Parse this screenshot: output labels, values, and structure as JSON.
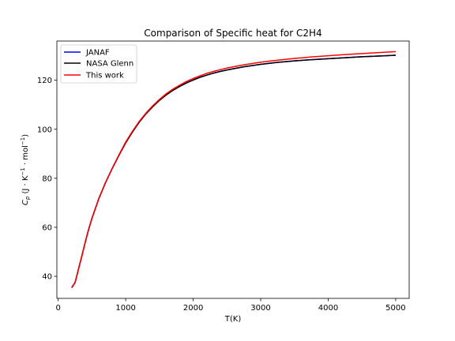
{
  "chart_data": {
    "type": "line",
    "title": "Comparison of Specific heat for C2H4",
    "xlabel": "T(K)",
    "ylabel": {
      "prefix": "C",
      "sub": "p",
      "body": " (J · K",
      "sup1": "−1",
      "mid": " · mol",
      "sup2": "−1",
      "end": ")"
    },
    "xlim": [
      -20,
      5200
    ],
    "ylim": [
      31,
      136
    ],
    "xticks": [
      0,
      1000,
      2000,
      3000,
      4000,
      5000
    ],
    "yticks": [
      40,
      60,
      80,
      100,
      120
    ],
    "grid": false,
    "legend_position": "top-left",
    "series": [
      {
        "name": "JANAF",
        "color": "#0000ff",
        "x": [
          200,
          250,
          300,
          350,
          400,
          450,
          500,
          600,
          700,
          800,
          900,
          1000,
          1100,
          1200,
          1300,
          1400,
          1500,
          1600,
          1700,
          1800,
          1900,
          2000,
          2100,
          2200,
          2300,
          2400,
          2500,
          2750,
          3000,
          3250,
          3500,
          3750,
          4000,
          4250,
          4500,
          4750,
          5000
        ],
        "y": [
          35.4,
          37.5,
          42.9,
          48.3,
          53.9,
          59.1,
          63.7,
          71.6,
          78.2,
          84.0,
          89.4,
          94.5,
          98.9,
          102.9,
          106.3,
          109.2,
          111.8,
          114.0,
          115.9,
          117.5,
          118.9,
          120.1,
          121.2,
          122.1,
          122.9,
          123.6,
          124.2,
          125.5,
          126.5,
          127.3,
          127.9,
          128.4,
          128.8,
          129.2,
          129.6,
          129.9,
          130.2
        ]
      },
      {
        "name": "NASA Glenn",
        "color": "#000000",
        "x": [
          200,
          250,
          300,
          350,
          400,
          450,
          500,
          600,
          700,
          800,
          900,
          1000,
          1100,
          1200,
          1300,
          1400,
          1500,
          1600,
          1700,
          1800,
          1900,
          2000,
          2100,
          2200,
          2300,
          2400,
          2500,
          2750,
          3000,
          3250,
          3500,
          3750,
          4000,
          4250,
          4500,
          4750,
          5000
        ],
        "y": [
          35.4,
          37.5,
          42.9,
          48.3,
          53.9,
          59.1,
          63.7,
          71.6,
          78.2,
          84.0,
          89.4,
          94.5,
          98.9,
          102.9,
          106.3,
          109.2,
          111.8,
          114.0,
          115.9,
          117.5,
          118.9,
          120.1,
          121.2,
          122.1,
          122.9,
          123.6,
          124.2,
          125.5,
          126.5,
          127.3,
          127.9,
          128.4,
          128.8,
          129.2,
          129.6,
          129.9,
          130.2
        ]
      },
      {
        "name": "This work",
        "color": "#ff0000",
        "x": [
          200,
          250,
          300,
          350,
          400,
          450,
          500,
          600,
          700,
          800,
          900,
          1000,
          1100,
          1200,
          1300,
          1400,
          1500,
          1600,
          1700,
          1800,
          1900,
          2000,
          2100,
          2200,
          2300,
          2400,
          2500,
          2750,
          3000,
          3250,
          3500,
          3750,
          4000,
          4250,
          4500,
          4750,
          5000
        ],
        "y": [
          35.3,
          37.4,
          42.8,
          48.2,
          53.8,
          59.0,
          63.6,
          71.5,
          78.2,
          84.1,
          89.6,
          94.8,
          99.2,
          103.2,
          106.6,
          109.6,
          112.2,
          114.5,
          116.4,
          118.0,
          119.5,
          120.7,
          121.8,
          122.8,
          123.6,
          124.3,
          125.0,
          126.3,
          127.4,
          128.2,
          128.9,
          129.5,
          130.0,
          130.5,
          130.9,
          131.3,
          131.7
        ]
      }
    ]
  }
}
